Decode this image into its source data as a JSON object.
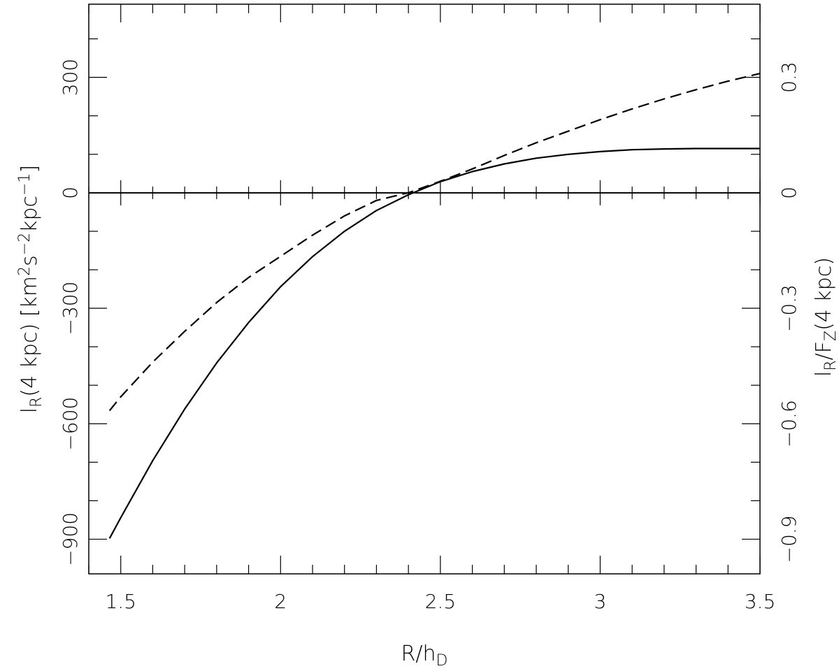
{
  "chart_data": {
    "type": "line",
    "title": "",
    "xlabel": {
      "main": "R/h",
      "sub": "D"
    },
    "ylabel_left": {
      "parts": [
        {
          "t": "l",
          "s": ""
        },
        {
          "t": "R",
          "s": "sub"
        },
        {
          "t": "(4 kpc) [km",
          "s": ""
        },
        {
          "t": "2",
          "s": "sup"
        },
        {
          "t": "s",
          "s": ""
        },
        {
          "t": "−2",
          "s": "sup"
        },
        {
          "t": "kpc",
          "s": ""
        },
        {
          "t": "−1",
          "s": "sup"
        },
        {
          "t": "]",
          "s": ""
        }
      ]
    },
    "ylabel_right": {
      "parts": [
        {
          "t": "l",
          "s": ""
        },
        {
          "t": "R",
          "s": "sub"
        },
        {
          "t": "/F",
          "s": ""
        },
        {
          "t": "Z",
          "s": "sub"
        },
        {
          "t": "(4 kpc)",
          "s": ""
        }
      ]
    },
    "xlim": [
      1.4,
      3.5
    ],
    "ylim_left": [
      -990,
      490
    ],
    "ylim_right": [
      -0.99,
      0.49
    ],
    "x_ticks": [
      "1.5",
      "2",
      "2.5",
      "3",
      "3.5"
    ],
    "y_ticks_left": [
      "−900",
      "−600",
      "−300",
      "0",
      "300"
    ],
    "y_ticks_right": [
      "−0.9",
      "−0.6",
      "−0.3",
      "0",
      "0.3"
    ],
    "zero_line": true,
    "grid": false,
    "series": [
      {
        "style": "solid",
        "axis": "left",
        "x": [
          1.465,
          1.5,
          1.6,
          1.7,
          1.8,
          1.9,
          2.0,
          2.1,
          2.2,
          2.3,
          2.4,
          2.5,
          2.6,
          2.7,
          2.8,
          2.9,
          3.0,
          3.1,
          3.2,
          3.3,
          3.4,
          3.5
        ],
        "y": [
          -898,
          -844,
          -696,
          -562,
          -442,
          -337,
          -244,
          -166,
          -100,
          -46,
          -5,
          29,
          55,
          75,
          90,
          100,
          107,
          112,
          114,
          115,
          115,
          115
        ]
      },
      {
        "style": "dashed",
        "axis": "right",
        "x": [
          1.465,
          1.5,
          1.6,
          1.7,
          1.8,
          1.9,
          2.0,
          2.1,
          2.2,
          2.3,
          2.4,
          2.5,
          2.6,
          2.7,
          2.8,
          2.9,
          3.0,
          3.1,
          3.2,
          3.3,
          3.4,
          3.5
        ],
        "y": [
          -0.566,
          -0.53,
          -0.44,
          -0.36,
          -0.285,
          -0.22,
          -0.165,
          -0.11,
          -0.06,
          -0.02,
          0.0,
          0.03,
          0.062,
          0.097,
          0.13,
          0.16,
          0.19,
          0.218,
          0.244,
          0.268,
          0.29,
          0.31
        ]
      }
    ]
  }
}
